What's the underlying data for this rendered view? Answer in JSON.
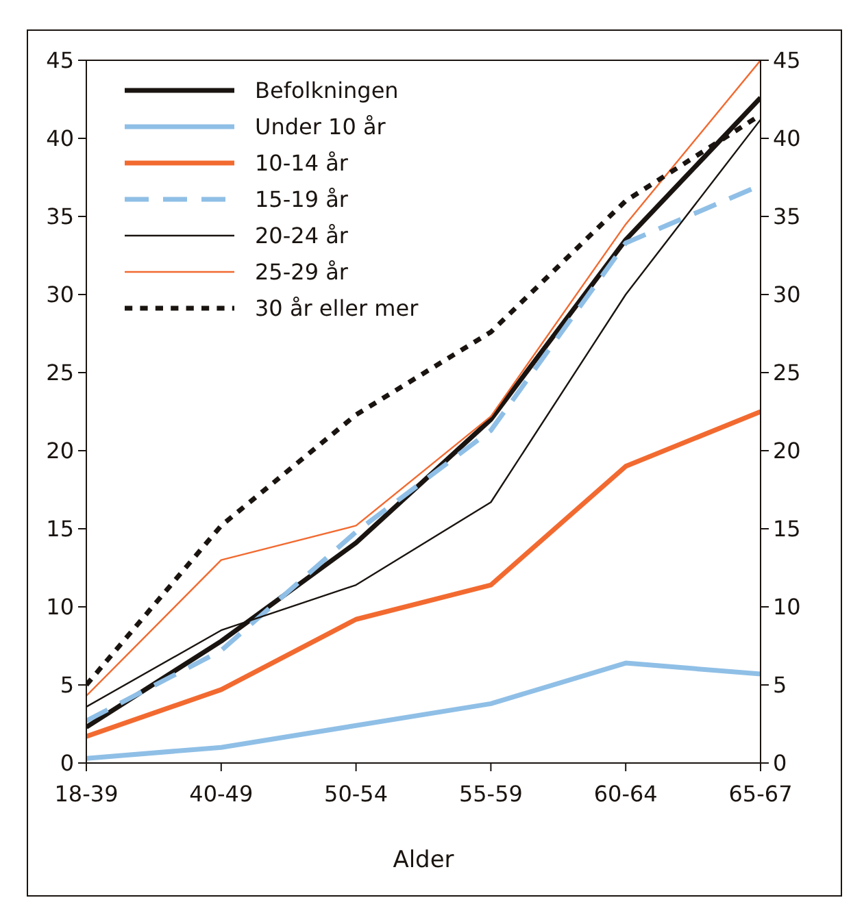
{
  "chart_data": {
    "type": "line",
    "xlabel": "Alder",
    "categories": [
      "18-39",
      "40-49",
      "50-54",
      "55-59",
      "60-64",
      "65-67"
    ],
    "ylim": [
      0,
      45
    ],
    "yticks": [
      0,
      5,
      10,
      15,
      20,
      25,
      30,
      35,
      40,
      45
    ],
    "y2lim": [
      0,
      45
    ],
    "y2ticks": [
      0,
      5,
      10,
      15,
      20,
      25,
      30,
      35,
      40,
      45
    ],
    "grid": false,
    "legend": "top left",
    "marker": "none",
    "series": [
      {
        "name": "Befolkningen",
        "color": "#1a1410",
        "line_style": "solid",
        "values": [
          2.3,
          7.8,
          14.1,
          22.0,
          33.5,
          42.6
        ]
      },
      {
        "name": "Under 10 år",
        "color": "#8fbfe6",
        "line_style": "solid",
        "values": [
          0.3,
          1.0,
          2.4,
          3.8,
          6.4,
          5.7
        ]
      },
      {
        "name": "10-14 år",
        "color": "#f26a30",
        "line_style": "solid",
        "values": [
          1.7,
          4.7,
          9.2,
          11.4,
          19.0,
          22.5
        ]
      },
      {
        "name": "15-19 år",
        "color": "#8fbfe6",
        "line_style": "dashed",
        "values": [
          2.7,
          7.2,
          14.8,
          21.3,
          33.3,
          37.0
        ]
      },
      {
        "name": "20-24 år",
        "color": "#1a1410",
        "line_style": "solid",
        "values": [
          3.6,
          8.5,
          11.4,
          16.7,
          30.0,
          41.2
        ]
      },
      {
        "name": "25-29 år",
        "color": "#f26a30",
        "line_style": "solid",
        "values": [
          4.3,
          13.0,
          15.2,
          22.2,
          34.5,
          45
        ]
      },
      {
        "name": "30 år eller mer",
        "color": "#1a1410",
        "line_style": "dotted",
        "values": [
          5.0,
          15.2,
          22.3,
          27.6,
          36.0,
          41.5
        ]
      }
    ]
  }
}
